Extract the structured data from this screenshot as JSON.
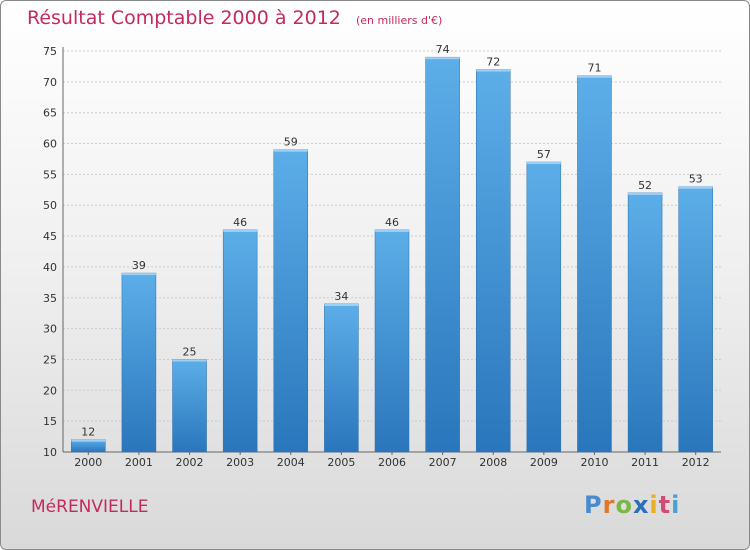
{
  "title": "Résultat Comptable 2000 à 2012",
  "unit_note": "(en milliers d'€)",
  "commune": "MéRENVIELLE",
  "brand": {
    "letters": [
      "P",
      "r",
      "o",
      "x",
      "i",
      "t",
      "i"
    ],
    "colors": [
      "#4a8bd0",
      "#e0782a",
      "#7ab648",
      "#2a6fb8",
      "#e8b020",
      "#d04a7a",
      "#4a9fd8"
    ]
  },
  "colors": {
    "bar": "#3a8fd8",
    "bar_light": "#5aaee8",
    "bar_dark": "#2a78bf",
    "grid": "#cccccc",
    "title": "#c42a5e"
  },
  "chart_data": {
    "type": "bar",
    "title": "Résultat Comptable 2000 à 2012",
    "xlabel": "",
    "ylabel": "",
    "categories": [
      "2000",
      "2001",
      "2002",
      "2003",
      "2004",
      "2005",
      "2006",
      "2007",
      "2008",
      "2009",
      "2010",
      "2011",
      "2012"
    ],
    "values": [
      12,
      39,
      25,
      46,
      59,
      34,
      46,
      74,
      72,
      57,
      71,
      52,
      53
    ],
    "ylim": [
      10,
      75
    ],
    "yticks": [
      10,
      15,
      20,
      25,
      30,
      35,
      40,
      45,
      50,
      55,
      60,
      65,
      70,
      75
    ],
    "grid": true
  }
}
